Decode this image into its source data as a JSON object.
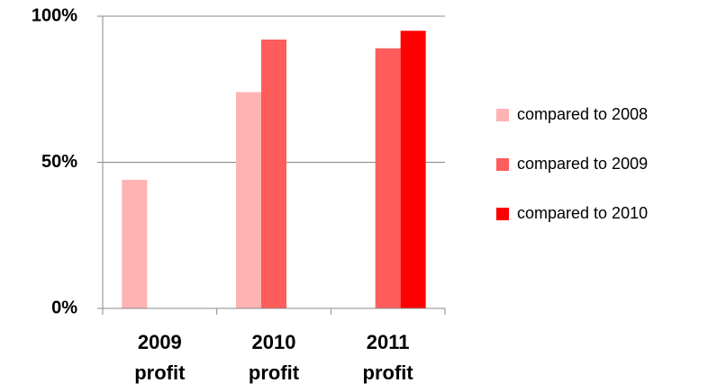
{
  "chart_data": {
    "type": "bar",
    "categories": [
      "2009 profit",
      "2010 profit",
      "2011 profit"
    ],
    "series": [
      {
        "name": "compared to 2008",
        "color": "#ffb3b3",
        "values": [
          44,
          74,
          null
        ]
      },
      {
        "name": "compared to 2009",
        "color": "#ff5c5c",
        "values": [
          null,
          92,
          89
        ]
      },
      {
        "name": "compared to 2010",
        "color": "#ff0000",
        "values": [
          null,
          null,
          95
        ]
      }
    ],
    "ylim": [
      0,
      100
    ],
    "yticks": [
      {
        "value": 0,
        "label": "0%"
      },
      {
        "value": 50,
        "label": "50%"
      },
      {
        "value": 100,
        "label": "100%"
      }
    ],
    "grid": true,
    "legend": "right"
  }
}
